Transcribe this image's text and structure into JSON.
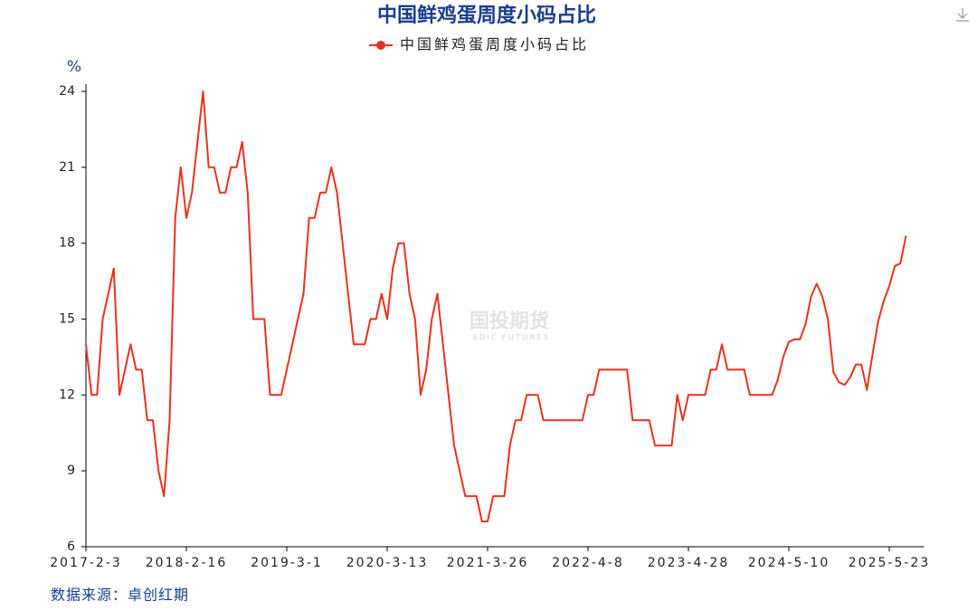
{
  "chart_data": {
    "type": "line",
    "title": "中国鲜鸡蛋周度小码占比",
    "y_unit": "%",
    "source": "数据来源：卓创红期",
    "watermark": "国投期货",
    "watermark_sub": "SDIC FUTURES",
    "categories": [
      "2017-2-3",
      null,
      null,
      null,
      null,
      null,
      null,
      null,
      null,
      null,
      null,
      null,
      null,
      null,
      null,
      null,
      null,
      null,
      "2018-2-16",
      null,
      null,
      null,
      null,
      null,
      null,
      null,
      null,
      null,
      null,
      null,
      null,
      null,
      null,
      null,
      null,
      null,
      "2019-3-1",
      null,
      null,
      null,
      null,
      null,
      null,
      null,
      null,
      null,
      null,
      null,
      null,
      null,
      null,
      null,
      null,
      null,
      "2020-3-13",
      null,
      null,
      null,
      null,
      null,
      null,
      null,
      null,
      null,
      null,
      null,
      null,
      null,
      null,
      null,
      null,
      null,
      "2021-3-26",
      null,
      null,
      null,
      null,
      null,
      null,
      null,
      null,
      null,
      null,
      null,
      null,
      null,
      null,
      null,
      null,
      null,
      "2022-4-8",
      null,
      null,
      null,
      null,
      null,
      null,
      null,
      null,
      null,
      null,
      null,
      null,
      null,
      null,
      null,
      null,
      null,
      "2023-4-28",
      null,
      null,
      null,
      null,
      null,
      null,
      null,
      null,
      null,
      null,
      null,
      null,
      null,
      null,
      null,
      null,
      null,
      "2024-5-10",
      null,
      null,
      null,
      null,
      null,
      null,
      null,
      null,
      null,
      null,
      null,
      null,
      null,
      null,
      null,
      null,
      null,
      "2025-5-23",
      null,
      null,
      null
    ],
    "series": [
      {
        "name": "中国鲜鸡蛋周度小码占比",
        "color": "#e8321e",
        "values": [
          14,
          12,
          12,
          15,
          16,
          17,
          12,
          13,
          14,
          13,
          13,
          11,
          11,
          9,
          8,
          11,
          19,
          21,
          19,
          20,
          22,
          24,
          21,
          21,
          20,
          20,
          21,
          21,
          22,
          20,
          15,
          15,
          15,
          12,
          12,
          12,
          13,
          14,
          15,
          16,
          19,
          19,
          20,
          20,
          21,
          20,
          18,
          16,
          14,
          14,
          14,
          15,
          15,
          16,
          15,
          17,
          18,
          18,
          16,
          15,
          12,
          13,
          15,
          16,
          14,
          12,
          10,
          9,
          8,
          8,
          8,
          7,
          7,
          8,
          8,
          8,
          10,
          11,
          11,
          12,
          12,
          12,
          11,
          11,
          11,
          11,
          11,
          11,
          11,
          11,
          12,
          12,
          13,
          13,
          13,
          13,
          13,
          13,
          11,
          11,
          11,
          11,
          10,
          10,
          10,
          10,
          12,
          11,
          12,
          12,
          12,
          12,
          13,
          13,
          14,
          13,
          13,
          13,
          13,
          12,
          12,
          12,
          12,
          12,
          12.6,
          13.5,
          14.1,
          14.2,
          14.2,
          14.8,
          15.9,
          16.4,
          15.9,
          15,
          12.9,
          12.5,
          12.4,
          12.7,
          13.2,
          13.2,
          12.2,
          13.6,
          14.9,
          15.7,
          16.3,
          17.1,
          17.2,
          18.3
        ]
      }
    ],
    "ylim": [
      6,
      24
    ],
    "yticks": [
      6,
      9,
      12,
      15,
      18,
      21,
      24
    ]
  }
}
